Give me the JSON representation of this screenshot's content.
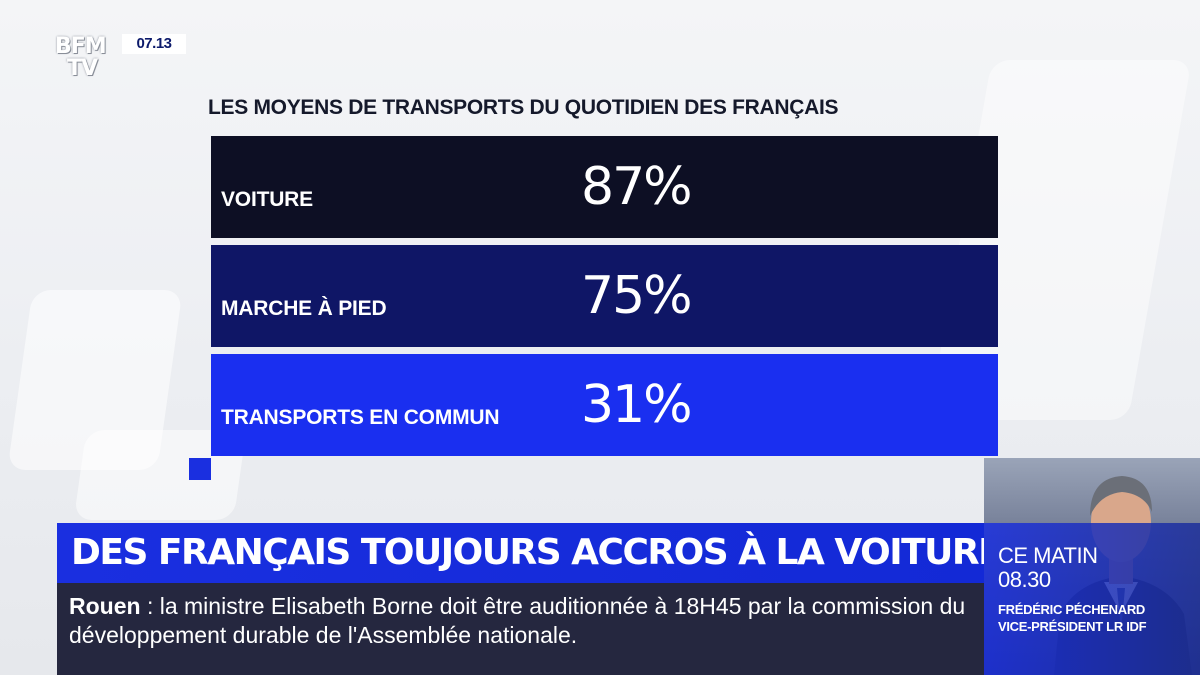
{
  "channel": {
    "logo_line1": "BFM",
    "logo_line2": "TV",
    "clock": "07.13"
  },
  "chart_data": {
    "type": "bar",
    "title": "LES MOYENS DE TRANSPORTS DU QUOTIDIEN DES FRANÇAIS",
    "categories": [
      "VOITURE",
      "MARCHE À PIED",
      "TRANSPORTS EN COMMUN"
    ],
    "values": [
      87,
      75,
      31
    ],
    "value_labels": [
      "87%",
      "75%",
      "31%"
    ],
    "colors": [
      "#0d0f24",
      "#0f1666",
      "#1a2ff0"
    ]
  },
  "headline": "DES FRANÇAIS TOUJOURS ACCROS À LA VOITURE",
  "ticker": {
    "place": "Rouen",
    "separator": " : ",
    "text": "la ministre Elisabeth Borne doit être auditionnée à 18H45 par la commission du développement durable de l'Assemblée nationale."
  },
  "show": {
    "name": "CE MATIN",
    "time": "08.30",
    "guest_name": "FRÉDÉRIC PÉCHENARD",
    "guest_role": "VICE-PRÉSIDENT LR IDF"
  }
}
